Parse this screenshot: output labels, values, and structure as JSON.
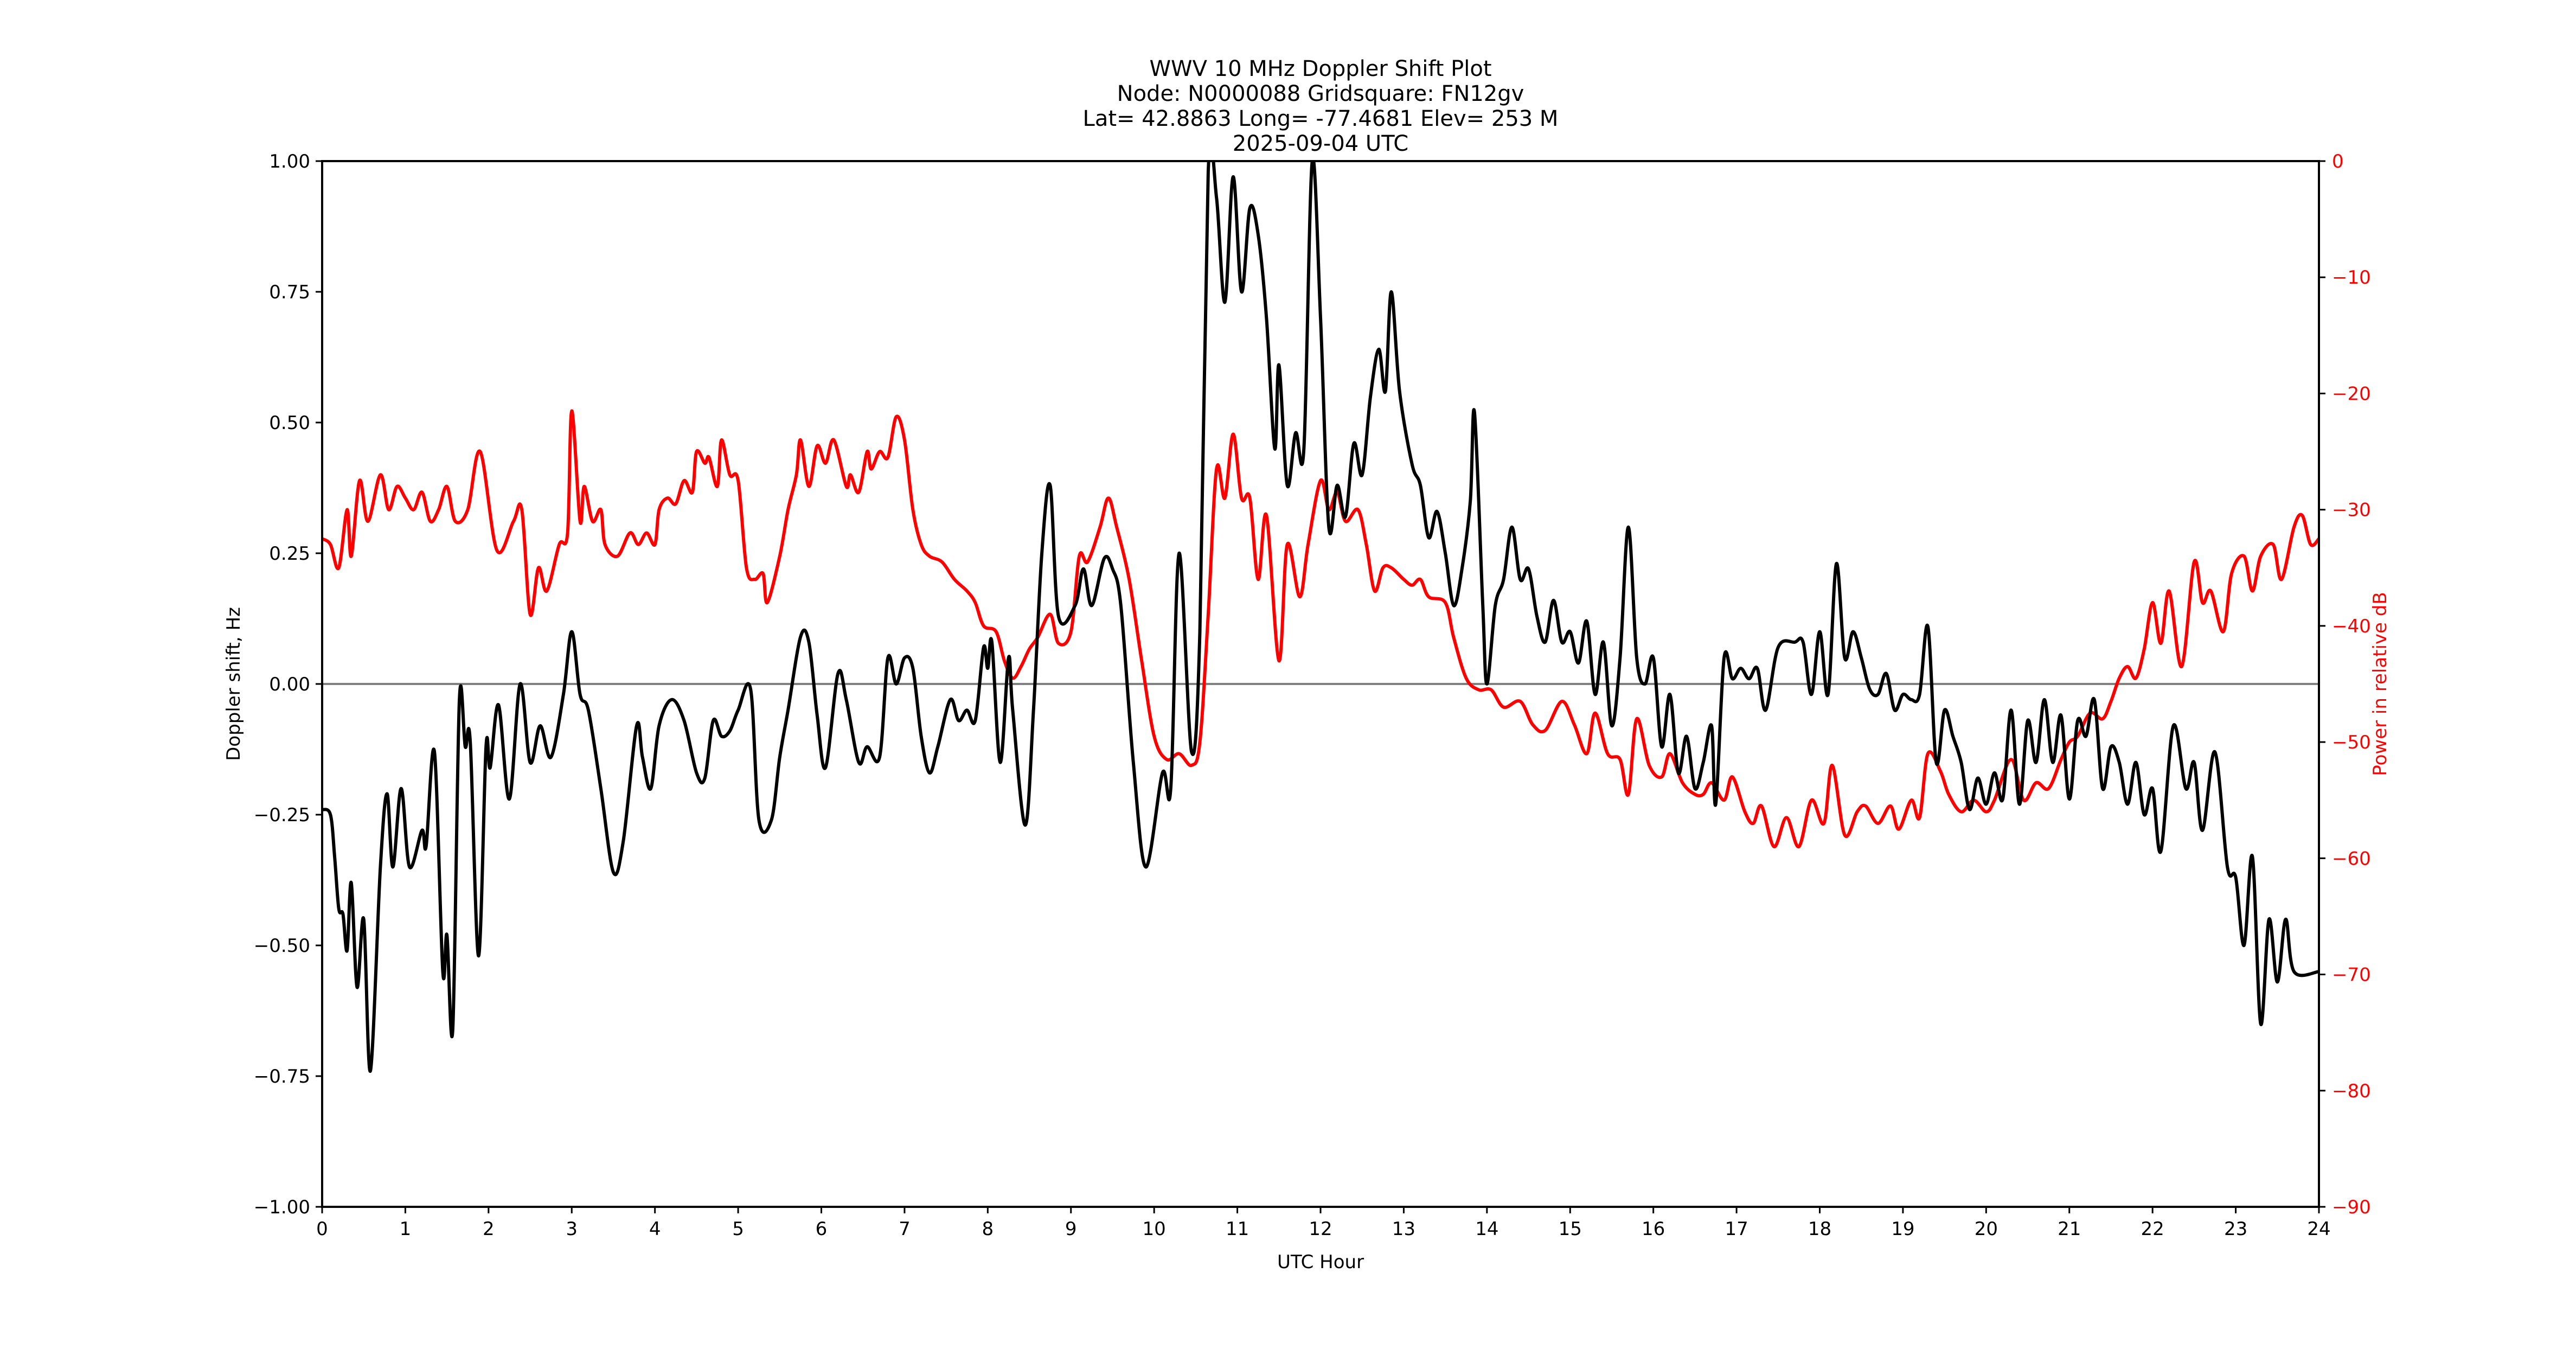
{
  "figure": {
    "title_lines": [
      "WWV 10 MHz Doppler Shift Plot",
      "Node:  N0000088     Gridsquare:  FN12gv",
      "Lat= 42.8863    Long= -77.4681    Elev= 253 M",
      "2025-09-04  UTC"
    ]
  },
  "colors": {
    "doppler": "#000000",
    "power": "#ff0000",
    "zero_line": "#808080",
    "axis": "#000000"
  },
  "chart_data": {
    "type": "line",
    "title": "WWV 10 MHz Doppler Shift Plot",
    "subtitle": [
      "Node:  N0000088     Gridsquare:  FN12gv",
      "Lat= 42.8863    Long= -77.4681    Elev= 253 M",
      "2025-09-04  UTC"
    ],
    "xlabel": "UTC Hour",
    "ylabel": "Doppler shift, Hz",
    "ylabel_right": "Power in relative dB",
    "xlim": [
      0,
      24
    ],
    "ylim": [
      -1.0,
      1.0
    ],
    "ylim_right": [
      -90,
      0
    ],
    "xticks": [
      "0",
      "1",
      "2",
      "3",
      "4",
      "5",
      "6",
      "7",
      "8",
      "9",
      "10",
      "11",
      "12",
      "13",
      "14",
      "15",
      "16",
      "17",
      "18",
      "19",
      "20",
      "21",
      "22",
      "23",
      "24"
    ],
    "yticks": [
      "−1.00",
      "−0.75",
      "−0.50",
      "−0.25",
      "0.00",
      "0.25",
      "0.50",
      "0.75",
      "1.00"
    ],
    "yticks_right": [
      "−90",
      "−80",
      "−70",
      "−60",
      "−50",
      "−40",
      "−30",
      "−20",
      "−10",
      "0"
    ],
    "grid": false,
    "legend": null,
    "reference_line": {
      "axis": "y",
      "value": 0.0,
      "color": "#808080"
    },
    "series": [
      {
        "name": "Doppler shift (Hz)",
        "axis": "left",
        "color": "#000000",
        "x": [
          0,
          0.1,
          0.15,
          0.2,
          0.25,
          0.3,
          0.35,
          0.42,
          0.5,
          0.58,
          0.7,
          0.78,
          0.85,
          0.95,
          1.05,
          1.2,
          1.25,
          1.35,
          1.45,
          1.5,
          1.57,
          1.65,
          1.72,
          1.78,
          1.88,
          1.97,
          2.02,
          2.12,
          2.25,
          2.38,
          2.5,
          2.62,
          2.75,
          2.9,
          3.0,
          3.1,
          3.2,
          3.35,
          3.5,
          3.62,
          3.78,
          3.85,
          3.95,
          4.05,
          4.2,
          4.35,
          4.5,
          4.6,
          4.7,
          4.8,
          4.9,
          5.0,
          5.15,
          5.25,
          5.4,
          5.5,
          5.6,
          5.75,
          5.85,
          5.95,
          6.05,
          6.2,
          6.3,
          6.45,
          6.55,
          6.7,
          6.8,
          6.9,
          7.0,
          7.1,
          7.2,
          7.3,
          7.4,
          7.55,
          7.65,
          7.75,
          7.85,
          7.95,
          8.0,
          8.05,
          8.15,
          8.25,
          8.3,
          8.45,
          8.55,
          8.65,
          8.75,
          8.85,
          9.05,
          9.15,
          9.25,
          9.4,
          9.5,
          9.6,
          9.75,
          9.9,
          10.1,
          10.2,
          10.3,
          10.45,
          10.55,
          10.65,
          10.75,
          10.85,
          10.95,
          11.05,
          11.15,
          11.25,
          11.35,
          11.45,
          11.5,
          11.6,
          11.7,
          11.8,
          11.9,
          12.0,
          12.1,
          12.2,
          12.3,
          12.4,
          12.5,
          12.6,
          12.7,
          12.78,
          12.85,
          12.95,
          13.1,
          13.2,
          13.3,
          13.4,
          13.5,
          13.6,
          13.7,
          13.8,
          13.85,
          13.95,
          14.0,
          14.1,
          14.2,
          14.3,
          14.4,
          14.5,
          14.6,
          14.7,
          14.8,
          14.9,
          15.0,
          15.1,
          15.2,
          15.3,
          15.4,
          15.5,
          15.6,
          15.7,
          15.8,
          15.9,
          16.0,
          16.1,
          16.2,
          16.3,
          16.4,
          16.5,
          16.6,
          16.7,
          16.75,
          16.85,
          16.95,
          17.05,
          17.15,
          17.25,
          17.35,
          17.5,
          17.7,
          17.8,
          17.9,
          18.0,
          18.1,
          18.2,
          18.3,
          18.4,
          18.5,
          18.6,
          18.7,
          18.8,
          18.9,
          19.0,
          19.1,
          19.2,
          19.3,
          19.4,
          19.5,
          19.6,
          19.7,
          19.8,
          19.9,
          20.0,
          20.1,
          20.2,
          20.3,
          20.4,
          20.5,
          20.6,
          20.7,
          20.8,
          20.9,
          21.0,
          21.1,
          21.2,
          21.3,
          21.4,
          21.5,
          21.6,
          21.7,
          21.8,
          21.9,
          22.0,
          22.1,
          22.25,
          22.4,
          22.5,
          22.6,
          22.75,
          22.9,
          23.0,
          23.1,
          23.2,
          23.3,
          23.4,
          23.5,
          23.6,
          23.7,
          24.0
        ],
        "values": [
          -0.24,
          -0.25,
          -0.33,
          -0.43,
          -0.44,
          -0.51,
          -0.38,
          -0.58,
          -0.45,
          -0.74,
          -0.35,
          -0.21,
          -0.35,
          -0.2,
          -0.35,
          -0.28,
          -0.31,
          -0.13,
          -0.55,
          -0.48,
          -0.66,
          -0.03,
          -0.12,
          -0.11,
          -0.52,
          -0.12,
          -0.16,
          -0.04,
          -0.22,
          0.0,
          -0.15,
          -0.08,
          -0.14,
          -0.02,
          0.1,
          -0.02,
          -0.05,
          -0.2,
          -0.36,
          -0.3,
          -0.08,
          -0.14,
          -0.2,
          -0.08,
          -0.03,
          -0.07,
          -0.17,
          -0.18,
          -0.07,
          -0.1,
          -0.09,
          -0.05,
          -0.01,
          -0.26,
          -0.26,
          -0.14,
          -0.05,
          0.09,
          0.08,
          -0.06,
          -0.16,
          0.02,
          -0.03,
          -0.15,
          -0.12,
          -0.14,
          0.05,
          0.0,
          0.05,
          0.03,
          -0.1,
          -0.17,
          -0.12,
          -0.03,
          -0.07,
          -0.05,
          -0.07,
          0.07,
          0.03,
          0.08,
          -0.15,
          0.05,
          -0.05,
          -0.27,
          -0.05,
          0.25,
          0.38,
          0.13,
          0.15,
          0.22,
          0.15,
          0.24,
          0.22,
          0.15,
          -0.15,
          -0.35,
          -0.17,
          -0.2,
          0.25,
          -0.13,
          0.1,
          0.98,
          0.93,
          0.73,
          0.97,
          0.75,
          0.91,
          0.86,
          0.7,
          0.45,
          0.61,
          0.38,
          0.48,
          0.45,
          1.0,
          0.7,
          0.3,
          0.38,
          0.32,
          0.46,
          0.4,
          0.55,
          0.64,
          0.56,
          0.75,
          0.56,
          0.42,
          0.38,
          0.28,
          0.33,
          0.25,
          0.15,
          0.22,
          0.35,
          0.52,
          0.15,
          0.0,
          0.15,
          0.2,
          0.3,
          0.2,
          0.22,
          0.13,
          0.08,
          0.16,
          0.08,
          0.1,
          0.04,
          0.12,
          -0.02,
          0.08,
          -0.08,
          0.05,
          0.3,
          0.05,
          0.0,
          0.05,
          -0.12,
          -0.02,
          -0.17,
          -0.1,
          -0.2,
          -0.15,
          -0.08,
          -0.23,
          0.05,
          0.01,
          0.03,
          0.01,
          0.03,
          -0.05,
          0.07,
          0.08,
          0.08,
          -0.02,
          0.1,
          -0.02,
          0.23,
          0.05,
          0.1,
          0.05,
          -0.01,
          -0.02,
          0.02,
          -0.05,
          -0.02,
          -0.03,
          -0.02,
          0.11,
          -0.15,
          -0.05,
          -0.1,
          -0.15,
          -0.24,
          -0.18,
          -0.23,
          -0.17,
          -0.22,
          -0.05,
          -0.23,
          -0.07,
          -0.15,
          -0.03,
          -0.15,
          -0.06,
          -0.22,
          -0.07,
          -0.1,
          -0.03,
          -0.2,
          -0.12,
          -0.15,
          -0.23,
          -0.15,
          -0.25,
          -0.2,
          -0.32,
          -0.08,
          -0.2,
          -0.15,
          -0.28,
          -0.13,
          -0.35,
          -0.37,
          -0.5,
          -0.33,
          -0.65,
          -0.45,
          -0.57,
          -0.45,
          -0.55,
          -0.55
        ]
      },
      {
        "name": "Power (relative dB)",
        "axis": "right",
        "color": "#ff0000",
        "x": [
          0,
          0.1,
          0.2,
          0.3,
          0.35,
          0.45,
          0.55,
          0.7,
          0.8,
          0.9,
          1.0,
          1.1,
          1.2,
          1.3,
          1.4,
          1.5,
          1.6,
          1.75,
          1.9,
          2.1,
          2.3,
          2.4,
          2.5,
          2.6,
          2.7,
          2.85,
          2.95,
          3.0,
          3.1,
          3.15,
          3.25,
          3.35,
          3.4,
          3.55,
          3.7,
          3.8,
          3.9,
          4.0,
          4.05,
          4.15,
          4.25,
          4.35,
          4.45,
          4.5,
          4.6,
          4.65,
          4.75,
          4.8,
          4.9,
          5.0,
          5.1,
          5.2,
          5.3,
          5.35,
          5.5,
          5.6,
          5.7,
          5.75,
          5.85,
          5.95,
          6.05,
          6.15,
          6.3,
          6.35,
          6.45,
          6.55,
          6.6,
          6.7,
          6.8,
          6.9,
          7.0,
          7.1,
          7.2,
          7.3,
          7.45,
          7.6,
          7.75,
          7.85,
          7.95,
          8.1,
          8.2,
          8.3,
          8.4,
          8.5,
          8.6,
          8.75,
          8.85,
          9.0,
          9.1,
          9.2,
          9.35,
          9.45,
          9.55,
          9.7,
          9.85,
          10.0,
          10.15,
          10.3,
          10.45,
          10.55,
          10.65,
          10.75,
          10.85,
          10.95,
          11.05,
          11.15,
          11.25,
          11.35,
          11.5,
          11.6,
          11.75,
          11.85,
          12.0,
          12.1,
          12.2,
          12.3,
          12.45,
          12.55,
          12.65,
          12.75,
          12.85,
          13.0,
          13.1,
          13.2,
          13.3,
          13.5,
          13.6,
          13.75,
          13.9,
          14.05,
          14.2,
          14.4,
          14.55,
          14.7,
          14.9,
          15.05,
          15.2,
          15.3,
          15.45,
          15.6,
          15.7,
          15.8,
          15.95,
          16.1,
          16.2,
          16.35,
          16.5,
          16.6,
          16.7,
          16.85,
          16.95,
          17.1,
          17.2,
          17.3,
          17.45,
          17.6,
          17.75,
          17.9,
          18.05,
          18.15,
          18.3,
          18.45,
          18.55,
          18.7,
          18.85,
          18.95,
          19.1,
          19.2,
          19.3,
          19.45,
          19.55,
          19.7,
          19.85,
          20.0,
          20.1,
          20.3,
          20.45,
          20.6,
          20.75,
          20.9,
          21.0,
          21.1,
          21.25,
          21.4,
          21.5,
          21.6,
          21.7,
          21.8,
          21.9,
          22.0,
          22.1,
          22.2,
          22.35,
          22.5,
          22.6,
          22.7,
          22.85,
          22.95,
          23.1,
          23.2,
          23.3,
          23.45,
          23.55,
          23.7,
          23.8,
          23.9,
          24.0
        ],
        "values": [
          -32.5,
          -33,
          -35,
          -30,
          -34,
          -27.5,
          -31,
          -27,
          -30,
          -28,
          -29,
          -30,
          -28.5,
          -31,
          -30,
          -28,
          -31,
          -30,
          -25,
          -33.5,
          -31,
          -30,
          -39,
          -35,
          -37,
          -33,
          -32,
          -21.5,
          -31,
          -28,
          -31,
          -30,
          -33,
          -34,
          -32,
          -33,
          -32,
          -33,
          -30,
          -29,
          -29.5,
          -27.5,
          -28.5,
          -25,
          -26,
          -25.5,
          -28,
          -24,
          -27,
          -27.5,
          -35,
          -36,
          -35.5,
          -38,
          -34,
          -30,
          -27,
          -24,
          -28,
          -24.5,
          -26,
          -24,
          -28,
          -27,
          -28.5,
          -25,
          -26.5,
          -25,
          -25.5,
          -22,
          -24,
          -30,
          -33,
          -34,
          -34.5,
          -36,
          -37,
          -38,
          -40,
          -40.5,
          -43,
          -44.5,
          -43.5,
          -42,
          -41,
          -39,
          -41.5,
          -40.5,
          -34,
          -34.5,
          -31.5,
          -29,
          -31.5,
          -36,
          -43,
          -49.5,
          -51.5,
          -51,
          -52,
          -50,
          -39,
          -26.5,
          -29,
          -23.5,
          -29,
          -29,
          -36,
          -30.5,
          -43,
          -33,
          -37.5,
          -33,
          -27.5,
          -30,
          -28.5,
          -31,
          -30,
          -33,
          -37,
          -35,
          -35,
          -36,
          -36.5,
          -36,
          -37.5,
          -38,
          -41,
          -44.5,
          -45.5,
          -45.5,
          -47,
          -46.5,
          -48.5,
          -49,
          -46.5,
          -48.5,
          -51,
          -47.5,
          -51,
          -51.5,
          -54.5,
          -48,
          -52,
          -53,
          -51,
          -53.5,
          -54.5,
          -54.5,
          -53.5,
          -55,
          -53,
          -56,
          -57,
          -55.5,
          -59,
          -56.5,
          -59,
          -55,
          -57,
          -52,
          -58,
          -56,
          -55.5,
          -57,
          -55.5,
          -57.5,
          -55,
          -56.5,
          -51,
          -52.5,
          -54.5,
          -56,
          -55,
          -56,
          -55,
          -51.5,
          -55,
          -53.5,
          -54,
          -51.5,
          -50,
          -49.5,
          -47.5,
          -48,
          -46.5,
          -44.5,
          -43.5,
          -44.5,
          -42,
          -38,
          -41.5,
          -37,
          -43.5,
          -34.5,
          -38,
          -37,
          -40.5,
          -35.5,
          -34,
          -37,
          -34,
          -33,
          -36,
          -31.5,
          -30.5,
          -33,
          -32.5
        ]
      }
    ]
  }
}
